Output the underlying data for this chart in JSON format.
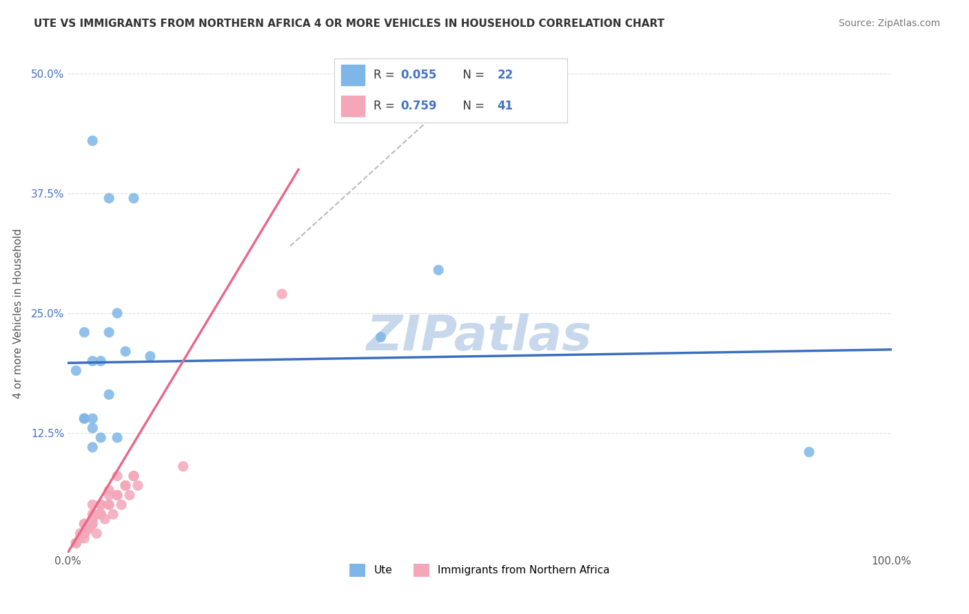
{
  "title": "UTE VS IMMIGRANTS FROM NORTHERN AFRICA 4 OR MORE VEHICLES IN HOUSEHOLD CORRELATION CHART",
  "source": "Source: ZipAtlas.com",
  "ylabel": "4 or more Vehicles in Household",
  "xlim": [
    0,
    100
  ],
  "ylim": [
    0,
    50
  ],
  "yticks": [
    0,
    12.5,
    25.0,
    37.5,
    50.0
  ],
  "xticks": [
    0,
    25,
    50,
    75,
    100
  ],
  "xtick_labels": [
    "0.0%",
    "",
    "",
    "",
    "100.0%"
  ],
  "ytick_labels": [
    "",
    "12.5%",
    "25.0%",
    "37.5%",
    "50.0%"
  ],
  "ute_color": "#7EB6E8",
  "imm_color": "#F4A7B9",
  "ute_line_color": "#3A6EBF",
  "imm_line_color": "#E8698A",
  "ref_line_color": "#BBBBBB",
  "watermark": "ZIPatlas",
  "watermark_color": "#C8D8EC",
  "background_color": "#FFFFFF",
  "grid_color": "#E0E0E0",
  "ute_x": [
    3,
    5,
    8,
    5,
    2,
    4,
    3,
    7,
    10,
    3,
    2,
    4,
    6,
    3,
    5,
    2,
    3,
    45,
    38,
    90,
    1,
    6
  ],
  "ute_y": [
    43,
    37,
    37,
    23,
    23,
    20,
    20,
    21,
    20.5,
    14,
    14,
    12,
    12,
    13,
    16.5,
    14,
    11,
    29.5,
    22.5,
    10.5,
    19,
    25
  ],
  "imm_x": [
    1,
    1.5,
    2,
    2.5,
    3,
    3.5,
    4,
    4.5,
    5,
    5.5,
    6,
    6.5,
    7,
    7.5,
    8,
    8.5,
    1,
    1.5,
    2,
    2.5,
    3,
    3.5,
    4,
    5,
    2,
    3,
    4,
    5,
    6,
    14,
    26,
    1,
    2,
    3,
    4,
    5,
    6,
    7,
    8,
    2,
    3
  ],
  "imm_y": [
    1,
    2,
    1.5,
    2.5,
    3,
    2,
    4,
    3.5,
    5,
    4,
    6,
    5,
    7,
    6,
    8,
    7,
    1,
    1.5,
    2,
    2.5,
    3.5,
    4,
    5,
    6,
    3,
    4,
    5,
    6.5,
    8,
    9,
    27,
    1,
    2,
    3,
    4,
    5,
    6,
    7,
    8,
    3,
    5
  ],
  "ute_line": [
    0,
    100,
    19.8,
    21.2
  ],
  "imm_line": [
    0,
    28,
    0,
    40
  ],
  "ref_line": [
    27,
    50,
    32,
    50
  ],
  "legend_entries": [
    {
      "label": "R = 0.055  N = 22",
      "color": "#7EB6E8"
    },
    {
      "label": "R = 0.759  N = 41",
      "color": "#F4A7B9"
    }
  ],
  "bottom_legend": [
    "Ute",
    "Immigrants from Northern Africa"
  ]
}
